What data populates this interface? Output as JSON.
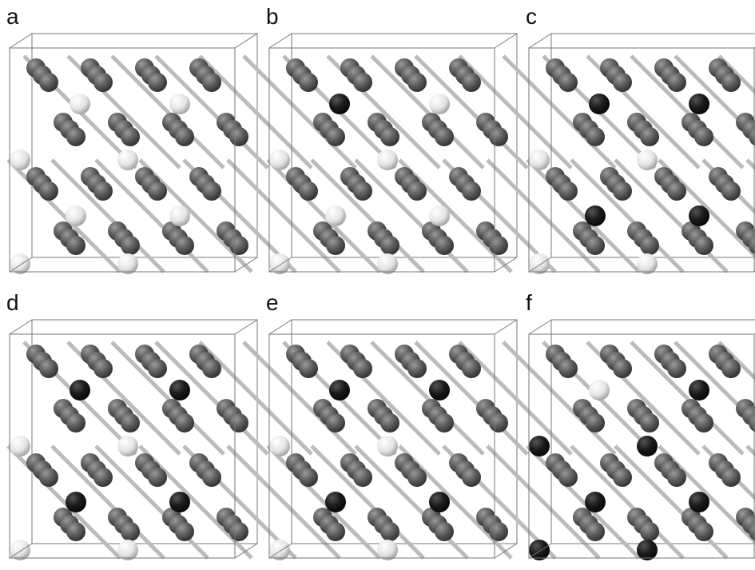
{
  "panels": [
    {
      "label": "a"
    },
    {
      "label": "b"
    },
    {
      "label": "c"
    },
    {
      "label": "d"
    },
    {
      "label": "e"
    },
    {
      "label": "f"
    }
  ]
}
